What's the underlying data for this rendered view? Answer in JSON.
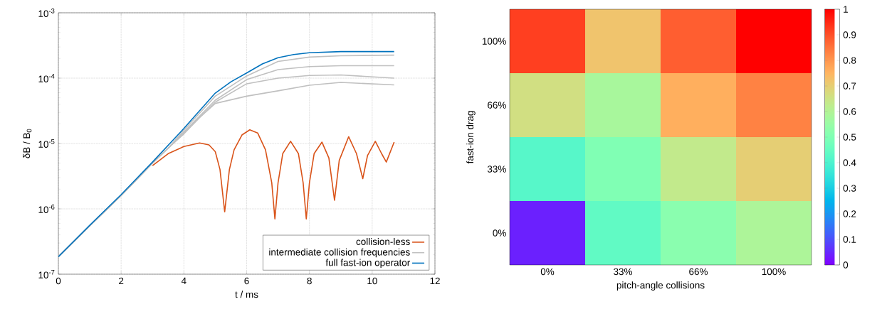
{
  "chart_data": [
    {
      "type": "line",
      "xlabel": "t / ms",
      "ylabel": "δB / B$_{0}$",
      "log": "y",
      "xlim": [
        0,
        12
      ],
      "ylim": [
        1e-07,
        0.001
      ],
      "xticks": [
        0,
        2,
        4,
        6,
        8,
        10,
        12
      ],
      "yticks": [
        {
          "value": 1e-07,
          "label": "10$^{-7}$"
        },
        {
          "value": 1e-06,
          "label": "10$^{-6}$"
        },
        {
          "value": 1e-05,
          "label": "10$^{-5}$"
        },
        {
          "value": 0.0001,
          "label": "10$^{-4}$"
        },
        {
          "value": 0.001,
          "label": "10$^{-3}$"
        }
      ],
      "grid": true,
      "legend": "bottom right",
      "series": [
        {
          "name": "collision-less",
          "color": "#d95319",
          "x": [
            3,
            3.5,
            4,
            4.5,
            4.8,
            5.0,
            5.15,
            5.3,
            5.45,
            5.6,
            5.85,
            6.1,
            6.35,
            6.6,
            6.8,
            6.9,
            7.0,
            7.15,
            7.4,
            7.65,
            7.8,
            7.9,
            8.0,
            8.15,
            8.4,
            8.62,
            8.8,
            8.95,
            9.25,
            9.5,
            9.7,
            9.85,
            10.1,
            10.3,
            10.45,
            10.7
          ],
          "values": [
            4.6e-06,
            7e-06,
            9e-06,
            1.02e-05,
            9.5e-06,
            7.5e-06,
            4e-06,
            9e-07,
            4e-06,
            8e-06,
            1.35e-05,
            1.62e-05,
            1.45e-05,
            8e-06,
            2.5e-06,
            7e-07,
            2.5e-06,
            7e-06,
            1.08e-05,
            7e-06,
            2.5e-06,
            7e-07,
            2.5e-06,
            7e-06,
            1.05e-05,
            6e-06,
            1.35e-06,
            5.5e-06,
            1.27e-05,
            7e-06,
            2.9e-06,
            6.5e-06,
            1.08e-05,
            7e-06,
            5.2e-06,
            1.05e-05
          ]
        },
        {
          "name": "intermediate collision frequencies",
          "color": "#c0c0c0",
          "x": [
            0,
            1,
            2,
            3,
            3.5,
            4,
            5,
            6,
            7,
            8,
            9,
            10.7
          ],
          "values": [
            1.85e-07,
            5.5e-07,
            1.6e-06,
            5e-06,
            8.5e-06,
            1.6e-05,
            5.3e-05,
            0.000108,
            0.00018,
            0.00021,
            0.00022,
            0.000225
          ]
        },
        {
          "color": "#c0c0c0",
          "x": [
            0,
            1,
            2,
            3,
            3.5,
            4,
            5,
            6,
            7,
            8,
            9,
            10.7
          ],
          "values": [
            1.85e-07,
            5.5e-07,
            1.6e-06,
            5e-06,
            8.5e-06,
            1.5e-05,
            4.6e-05,
            9.5e-05,
            0.000135,
            0.00015,
            0.000155,
            0.000155
          ]
        },
        {
          "color": "#c0c0c0",
          "x": [
            0,
            1,
            2,
            3,
            3.5,
            4,
            5,
            6,
            7,
            8,
            9,
            10.7
          ],
          "values": [
            1.85e-07,
            5.5e-07,
            1.6e-06,
            5e-06,
            8.5e-06,
            1.45e-05,
            4.3e-05,
            8.2e-05,
            0.0001,
            0.00011,
            0.000112,
            0.0001
          ]
        },
        {
          "color": "#c0c0c0",
          "x": [
            0,
            1,
            2,
            3,
            3.5,
            4,
            4.5,
            5,
            6,
            7,
            8,
            9,
            10.7
          ],
          "values": [
            1.85e-07,
            5.5e-07,
            1.6e-06,
            5e-06,
            8.5e-06,
            1.4e-05,
            2.5e-05,
            4.1e-05,
            5.3e-05,
            6.4e-05,
            7.8e-05,
            8.6e-05,
            7.9e-05
          ]
        },
        {
          "name": "full fast-ion operator",
          "color": "#0072bd",
          "x": [
            0,
            1,
            2,
            3,
            4,
            5,
            5.5,
            6,
            6.5,
            7,
            7.5,
            8,
            9,
            10,
            10.7
          ],
          "values": [
            1.85e-07,
            5.6e-07,
            1.65e-06,
            5.2e-06,
            1.7e-05,
            5.9e-05,
            8.8e-05,
            0.00012,
            0.000165,
            0.000205,
            0.00023,
            0.000245,
            0.000255,
            0.000255,
            0.000255
          ]
        }
      ]
    },
    {
      "type": "heatmap",
      "xlabel": "pitch-angle collisions",
      "ylabel": "fast-ion drag",
      "categories": [
        "0%",
        "33%",
        "66%",
        "100%"
      ],
      "y_categories": [
        "100%",
        "66%",
        "33%",
        "0%"
      ],
      "cells": [
        [
          0.92,
          0.72,
          0.88,
          1.0
        ],
        [
          0.66,
          0.58,
          0.76,
          0.83
        ],
        [
          0.42,
          0.5,
          0.63,
          0.7
        ],
        [
          0.04,
          0.44,
          0.52,
          0.59
        ]
      ],
      "clim": [
        0,
        1
      ],
      "cticks": [
        0,
        0.1,
        0.2,
        0.3,
        0.4,
        0.5,
        0.6,
        0.7,
        0.8,
        0.9,
        1
      ]
    }
  ]
}
